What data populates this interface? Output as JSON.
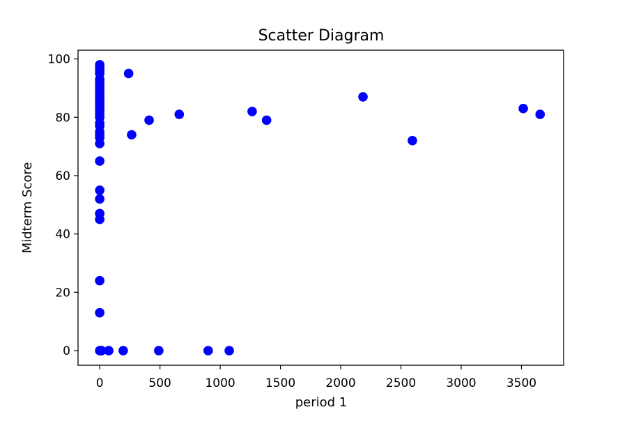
{
  "chart_data": {
    "type": "scatter",
    "title": "Scatter Diagram",
    "xlabel": "period 1",
    "ylabel": "Midterm Score",
    "xlim": [
      -180,
      3850
    ],
    "ylim": [
      -5,
      103
    ],
    "xticks": [
      0,
      500,
      1000,
      1500,
      2000,
      2500,
      3000,
      3500
    ],
    "yticks": [
      0,
      20,
      40,
      60,
      80,
      100
    ],
    "grid": false,
    "marker_color": "#0000ff",
    "series": [
      {
        "points": [
          [
            0,
            98
          ],
          [
            0,
            97
          ],
          [
            0,
            96
          ],
          [
            0,
            95
          ],
          [
            0,
            93
          ],
          [
            0,
            92
          ],
          [
            0,
            91
          ],
          [
            0,
            90
          ],
          [
            0,
            89
          ],
          [
            0,
            88
          ],
          [
            0,
            87
          ],
          [
            0,
            86
          ],
          [
            0,
            85
          ],
          [
            0,
            84
          ],
          [
            0,
            83
          ],
          [
            0,
            82
          ],
          [
            0,
            81
          ],
          [
            0,
            80
          ],
          [
            0,
            78
          ],
          [
            0,
            77
          ],
          [
            0,
            75
          ],
          [
            0,
            74
          ],
          [
            0,
            73
          ],
          [
            0,
            71
          ],
          [
            0,
            65
          ],
          [
            0,
            55
          ],
          [
            0,
            52
          ],
          [
            0,
            47
          ],
          [
            0,
            45
          ],
          [
            0,
            24
          ],
          [
            0,
            13
          ],
          [
            0,
            0
          ],
          [
            5,
            0
          ],
          [
            10,
            0
          ],
          [
            15,
            0
          ],
          [
            75,
            0
          ],
          [
            195,
            0
          ],
          [
            490,
            0
          ],
          [
            900,
            0
          ],
          [
            1075,
            0
          ],
          [
            240,
            95
          ],
          [
            265,
            74
          ],
          [
            410,
            79
          ],
          [
            660,
            81
          ],
          [
            1265,
            82
          ],
          [
            1385,
            79
          ],
          [
            2185,
            87
          ],
          [
            2595,
            72
          ],
          [
            3515,
            83
          ],
          [
            3655,
            81
          ]
        ]
      }
    ]
  }
}
